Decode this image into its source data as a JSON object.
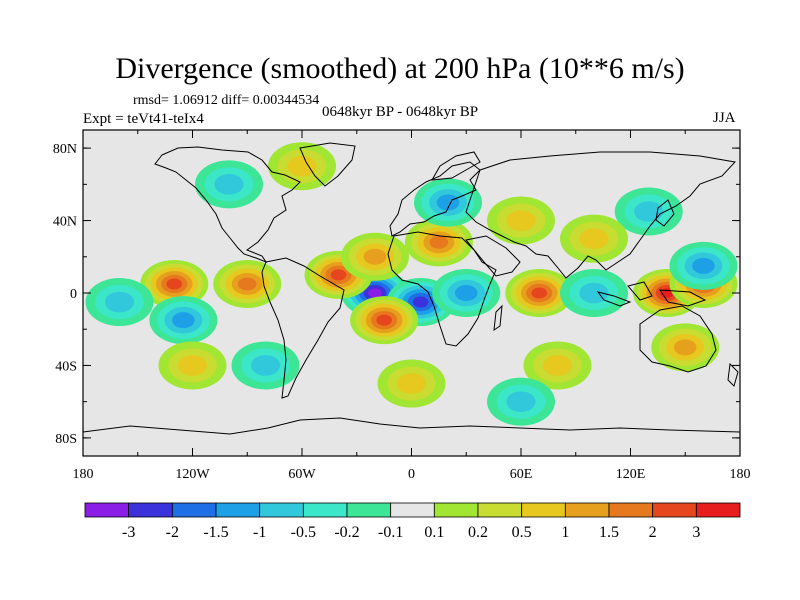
{
  "title": "Divergence (smoothed) at 200 hPa (10**6 m/s)",
  "stats_line": "rmsd= 1.06912 diff= 0.00344534",
  "experiment": "Expt = teVt41-teIx4",
  "period": "0648kyr BP - 0648kyr BP",
  "season": "JJA",
  "y_ticks": [
    {
      "value": 80,
      "label": "80N"
    },
    {
      "value": 40,
      "label": "40N"
    },
    {
      "value": 0,
      "label": "0"
    },
    {
      "value": -40,
      "label": "40S"
    },
    {
      "value": -80,
      "label": "80S"
    }
  ],
  "x_ticks": [
    {
      "value": -180,
      "label": "180"
    },
    {
      "value": -120,
      "label": "120W"
    },
    {
      "value": -60,
      "label": "60W"
    },
    {
      "value": 0,
      "label": "0"
    },
    {
      "value": 60,
      "label": "60E"
    },
    {
      "value": 120,
      "label": "120E"
    },
    {
      "value": 180,
      "label": "180"
    }
  ],
  "colorbar": {
    "colors": [
      "#8a1ee6",
      "#3c32dc",
      "#1e6ee6",
      "#1ea0e6",
      "#32c8dc",
      "#3ce6c8",
      "#3ce696",
      "#e6e6e6",
      "#a0e632",
      "#c8dc32",
      "#e6c81e",
      "#e6a01e",
      "#e6781e",
      "#e6461e",
      "#e61e1e"
    ],
    "labels": [
      "-3",
      "-2",
      "-1.5",
      "-1",
      "-0.5",
      "-0.2",
      "-0.1",
      "0.1",
      "0.2",
      "0.5",
      "1",
      "1.5",
      "2",
      "3"
    ]
  },
  "chart_data": {
    "type": "heatmap",
    "title": "Divergence (smoothed) at 200 hPa (10**6 m/s)",
    "x_range": [
      -180,
      180
    ],
    "y_range": [
      -90,
      90
    ],
    "contour_levels": [
      -3,
      -2,
      -1.5,
      -1,
      -0.5,
      -0.2,
      -0.1,
      0.1,
      0.2,
      0.5,
      1,
      1.5,
      2,
      3
    ],
    "features": [
      {
        "lon": -20,
        "lat": 0,
        "value": -3.5
      },
      {
        "lon": 5,
        "lat": -5,
        "value": -2.5
      },
      {
        "lon": -40,
        "lat": 10,
        "value": 2.5
      },
      {
        "lon": -20,
        "lat": 20,
        "value": 1.2
      },
      {
        "lon": -15,
        "lat": -15,
        "value": 2.5
      },
      {
        "lon": -130,
        "lat": 5,
        "value": 2.5
      },
      {
        "lon": -90,
        "lat": 5,
        "value": 1.5
      },
      {
        "lon": 15,
        "lat": 28,
        "value": 1.5
      },
      {
        "lon": 30,
        "lat": 0,
        "value": -1.3
      },
      {
        "lon": 70,
        "lat": 0,
        "value": 2.5
      },
      {
        "lon": 100,
        "lat": 0,
        "value": -0.8
      },
      {
        "lon": 140,
        "lat": 0,
        "value": 3.5
      },
      {
        "lon": 160,
        "lat": 5,
        "value": 2.0
      },
      {
        "lon": -125,
        "lat": -15,
        "value": -1.2
      },
      {
        "lon": -160,
        "lat": -5,
        "value": -0.8
      },
      {
        "lon": 20,
        "lat": 50,
        "value": -1.0
      },
      {
        "lon": 130,
        "lat": 45,
        "value": -0.8
      },
      {
        "lon": 160,
        "lat": 15,
        "value": -1.0
      },
      {
        "lon": 60,
        "lat": 40,
        "value": 0.8
      },
      {
        "lon": 100,
        "lat": 30,
        "value": 0.5
      },
      {
        "lon": -100,
        "lat": 60,
        "value": -0.5
      },
      {
        "lon": -60,
        "lat": 70,
        "value": 0.6
      },
      {
        "lon": 80,
        "lat": -40,
        "value": 0.6
      },
      {
        "lon": -120,
        "lat": -40,
        "value": 0.6
      },
      {
        "lon": -80,
        "lat": -40,
        "value": -0.6
      },
      {
        "lon": 150,
        "lat": -30,
        "value": 1.0
      },
      {
        "lon": 0,
        "lat": -50,
        "value": 0.5
      },
      {
        "lon": 60,
        "lat": -60,
        "value": -0.5
      }
    ]
  }
}
